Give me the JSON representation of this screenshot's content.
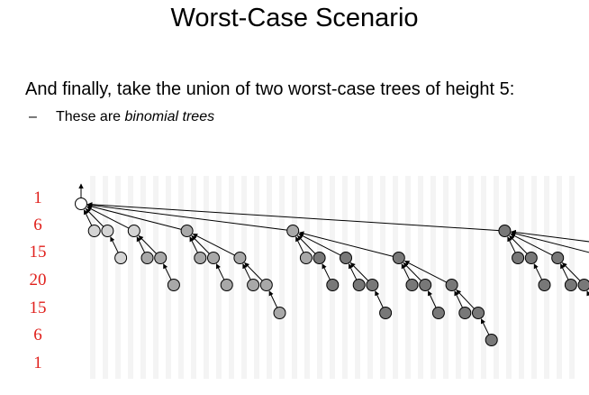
{
  "slide": {
    "title": "Worst-Case Scenario",
    "intro": "And finally, take the union of two worst-case trees of height 5:",
    "bullet_dash": "–",
    "bullet_text": "These are ",
    "bullet_emphasis": "binomial trees"
  },
  "level_counts": [
    "1",
    "6",
    "15",
    "20",
    "15",
    "6",
    "1"
  ],
  "colors": {
    "level_label": "#e0201c",
    "root_fill": "#ffffff",
    "light_fill": "#d4d4d4",
    "medium_fill": "#a8a8a8",
    "dark_fill": "#787878",
    "edge": "#000000",
    "background_stripes": "#f4f4f4"
  }
}
